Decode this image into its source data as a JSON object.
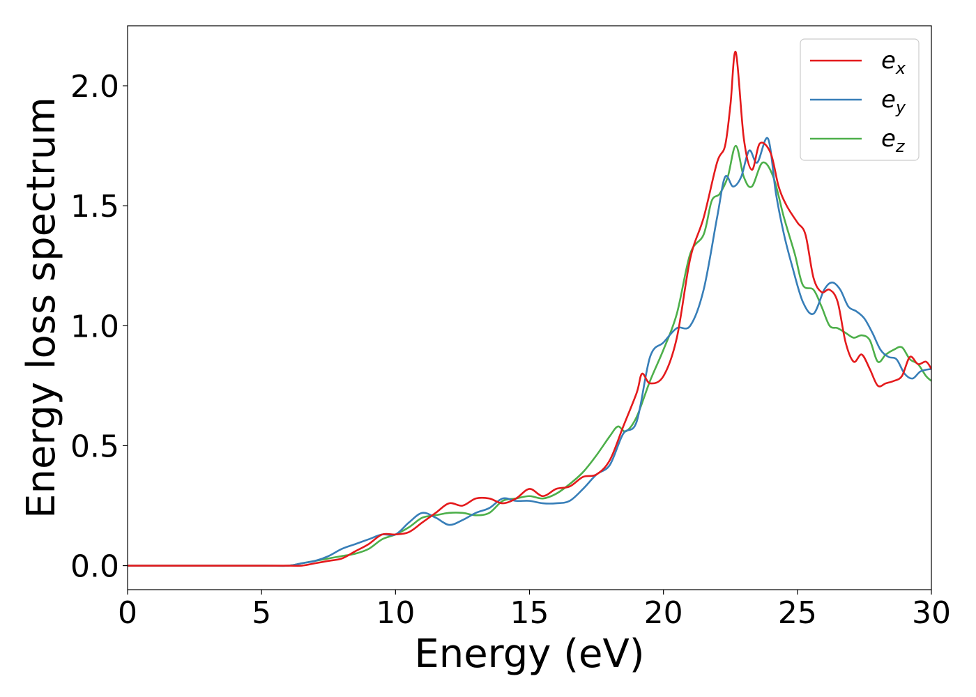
{
  "chart_data": {
    "type": "line",
    "title": "",
    "xlabel": "Energy (eV)",
    "ylabel": "Energy loss spectrum",
    "xlim": [
      0,
      30
    ],
    "ylim": [
      -0.1,
      2.25
    ],
    "xticks": [
      0,
      5,
      10,
      15,
      20,
      25,
      30
    ],
    "yticks": [
      0.0,
      0.5,
      1.0,
      1.5,
      2.0
    ],
    "xtick_labels": [
      "0",
      "5",
      "10",
      "15",
      "20",
      "25",
      "30"
    ],
    "ytick_labels": [
      "0.0",
      "0.5",
      "1.0",
      "1.5",
      "2.0"
    ],
    "grid": false,
    "legend_position": "top-right",
    "series": [
      {
        "name": "e_x",
        "label_main": "e",
        "label_sub": "x",
        "color": "#e41a1c",
        "x": [
          0,
          5,
          6,
          6.5,
          7,
          7.5,
          8,
          8.5,
          9,
          9.5,
          10,
          10.5,
          11,
          11.5,
          12,
          12.5,
          13,
          13.5,
          14,
          14.5,
          15,
          15.5,
          16,
          16.5,
          17,
          17.5,
          18,
          18.5,
          19,
          19.2,
          19.5,
          20,
          20.5,
          21,
          21.5,
          22,
          22.3,
          22.5,
          22.7,
          23,
          23.3,
          23.6,
          24,
          24.3,
          24.6,
          25,
          25.3,
          25.6,
          25.9,
          26.2,
          26.5,
          26.8,
          27.1,
          27.4,
          27.7,
          28,
          28.3,
          28.6,
          28.9,
          29.2,
          29.5,
          29.8,
          30
        ],
        "y": [
          0.0,
          0.0,
          0.0,
          0.0,
          0.01,
          0.02,
          0.03,
          0.06,
          0.09,
          0.13,
          0.13,
          0.14,
          0.18,
          0.22,
          0.26,
          0.25,
          0.28,
          0.28,
          0.26,
          0.28,
          0.32,
          0.29,
          0.32,
          0.33,
          0.37,
          0.38,
          0.44,
          0.58,
          0.72,
          0.8,
          0.76,
          0.79,
          0.95,
          1.28,
          1.45,
          1.68,
          1.75,
          1.92,
          2.14,
          1.78,
          1.65,
          1.76,
          1.72,
          1.58,
          1.5,
          1.43,
          1.38,
          1.2,
          1.14,
          1.15,
          1.1,
          0.93,
          0.85,
          0.88,
          0.82,
          0.75,
          0.76,
          0.77,
          0.79,
          0.87,
          0.84,
          0.85,
          0.82
        ]
      },
      {
        "name": "e_y",
        "label_main": "e",
        "label_sub": "y",
        "color": "#377eb8",
        "x": [
          0,
          5,
          6,
          6.5,
          7,
          7.5,
          8,
          8.5,
          9,
          9.5,
          10,
          10.5,
          11,
          11.5,
          12,
          12.5,
          13,
          13.5,
          14,
          14.5,
          15,
          15.5,
          16,
          16.5,
          17,
          17.5,
          18,
          18.5,
          19,
          19.5,
          20,
          20.5,
          21,
          21.5,
          22,
          22.3,
          22.6,
          22.9,
          23.2,
          23.5,
          23.9,
          24.2,
          24.5,
          24.8,
          25.2,
          25.6,
          26,
          26.3,
          26.6,
          26.9,
          27.2,
          27.5,
          27.8,
          28.1,
          28.4,
          28.7,
          29,
          29.3,
          29.6,
          30
        ],
        "y": [
          0.0,
          0.0,
          0.0,
          0.01,
          0.02,
          0.04,
          0.07,
          0.09,
          0.11,
          0.13,
          0.13,
          0.18,
          0.22,
          0.2,
          0.17,
          0.19,
          0.22,
          0.24,
          0.28,
          0.27,
          0.27,
          0.26,
          0.26,
          0.27,
          0.32,
          0.38,
          0.42,
          0.55,
          0.6,
          0.87,
          0.93,
          0.99,
          1.0,
          1.15,
          1.45,
          1.62,
          1.58,
          1.62,
          1.73,
          1.68,
          1.78,
          1.55,
          1.38,
          1.25,
          1.1,
          1.05,
          1.15,
          1.18,
          1.15,
          1.08,
          1.06,
          1.03,
          0.97,
          0.9,
          0.87,
          0.86,
          0.8,
          0.78,
          0.81,
          0.82
        ]
      },
      {
        "name": "e_z",
        "label_main": "e",
        "label_sub": "z",
        "color": "#4daf4a",
        "x": [
          0,
          5,
          6,
          6.5,
          7,
          7.5,
          8,
          8.5,
          9,
          9.5,
          10,
          10.5,
          11,
          11.5,
          12,
          12.5,
          13,
          13.5,
          14,
          14.5,
          15,
          15.5,
          16,
          16.5,
          17,
          17.5,
          18,
          18.3,
          18.6,
          19,
          19.5,
          20,
          20.5,
          21,
          21.5,
          21.8,
          22.1,
          22.4,
          22.7,
          23,
          23.3,
          23.7,
          24.1,
          24.5,
          24.9,
          25.2,
          25.6,
          25.9,
          26.2,
          26.5,
          26.8,
          27.1,
          27.4,
          27.7,
          28,
          28.3,
          28.6,
          28.9,
          29.2,
          29.5,
          29.8,
          30
        ],
        "y": [
          0.0,
          0.0,
          0.0,
          0.01,
          0.02,
          0.03,
          0.04,
          0.05,
          0.07,
          0.11,
          0.13,
          0.16,
          0.2,
          0.21,
          0.22,
          0.22,
          0.21,
          0.22,
          0.27,
          0.28,
          0.29,
          0.28,
          0.3,
          0.34,
          0.39,
          0.46,
          0.54,
          0.58,
          0.56,
          0.62,
          0.77,
          0.9,
          1.05,
          1.3,
          1.38,
          1.52,
          1.55,
          1.62,
          1.75,
          1.62,
          1.58,
          1.68,
          1.62,
          1.45,
          1.3,
          1.17,
          1.15,
          1.08,
          1.0,
          0.99,
          0.97,
          0.95,
          0.96,
          0.94,
          0.85,
          0.88,
          0.9,
          0.91,
          0.86,
          0.84,
          0.79,
          0.77
        ]
      }
    ]
  }
}
